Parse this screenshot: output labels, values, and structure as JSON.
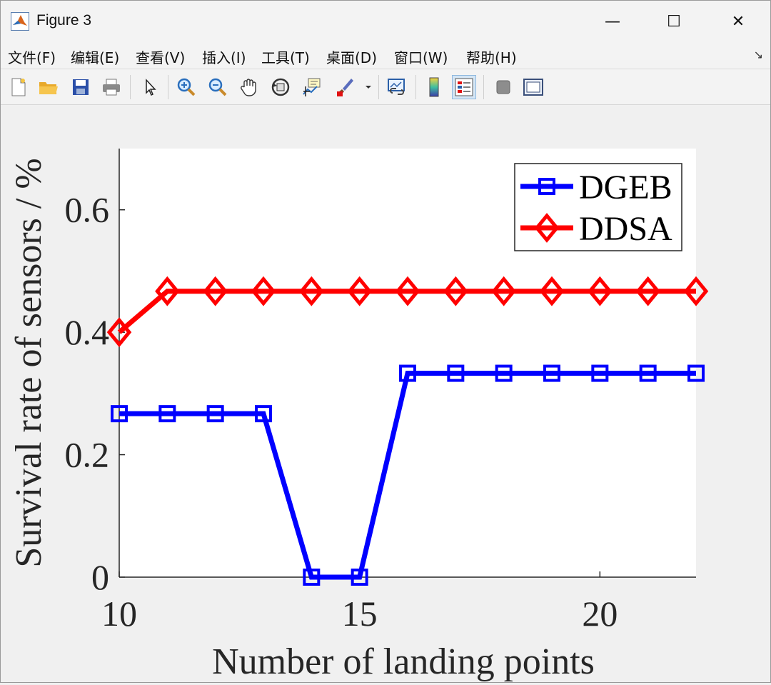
{
  "window": {
    "title": "Figure 3",
    "minimize_glyph": "—",
    "maximize_glyph": "☐",
    "close_glyph": "✕"
  },
  "menu": {
    "items": [
      {
        "label": "文件(F)"
      },
      {
        "label": "编辑(E)"
      },
      {
        "label": "查看(V)"
      },
      {
        "label": "插入(I)"
      },
      {
        "label": "工具(T)"
      },
      {
        "label": "桌面(D)"
      },
      {
        "label": "窗口(W)"
      },
      {
        "label": "帮助(H)"
      }
    ],
    "overflow_glyph": "↘"
  },
  "toolbar": {
    "icons": [
      "new-figure-icon",
      "open-file-icon",
      "save-icon",
      "print-icon",
      "pointer-icon",
      "zoom-in-icon",
      "zoom-out-icon",
      "pan-hand-icon",
      "rotate-3d-icon",
      "data-cursor-icon",
      "brush-icon",
      "link-plot-icon",
      "colorbar-icon",
      "legend-icon",
      "hide-plot-tools-icon",
      "show-plot-tools-icon"
    ]
  },
  "chart_data": {
    "type": "line",
    "title": "",
    "xlabel": "Number of landing points",
    "ylabel": "Survival rate of sensors / %",
    "xlim": [
      10,
      22
    ],
    "ylim": [
      0,
      0.7
    ],
    "xticks": [
      10,
      15,
      20
    ],
    "xtick_labels": [
      "10",
      "15",
      "20"
    ],
    "yticks": [
      0,
      0.2,
      0.4,
      0.6
    ],
    "ytick_labels": [
      "0",
      "0.2",
      "0.4",
      "0.6"
    ],
    "grid": false,
    "legend_position": "top-right",
    "series": [
      {
        "name": "DGEB",
        "color": "#0000ff",
        "marker": "square",
        "x": [
          10,
          11,
          12,
          13,
          14,
          15,
          16,
          17,
          18,
          19,
          20,
          21,
          22
        ],
        "y": [
          0.267,
          0.267,
          0.267,
          0.267,
          0,
          0,
          0.333,
          0.333,
          0.333,
          0.333,
          0.333,
          0.333,
          0.333
        ]
      },
      {
        "name": "DDSA",
        "color": "#ff0000",
        "marker": "diamond",
        "x": [
          10,
          11,
          12,
          13,
          14,
          15,
          16,
          17,
          18,
          19,
          20,
          21,
          22
        ],
        "y": [
          0.4,
          0.467,
          0.467,
          0.467,
          0.467,
          0.467,
          0.467,
          0.467,
          0.467,
          0.467,
          0.467,
          0.467,
          0.467
        ]
      }
    ]
  }
}
